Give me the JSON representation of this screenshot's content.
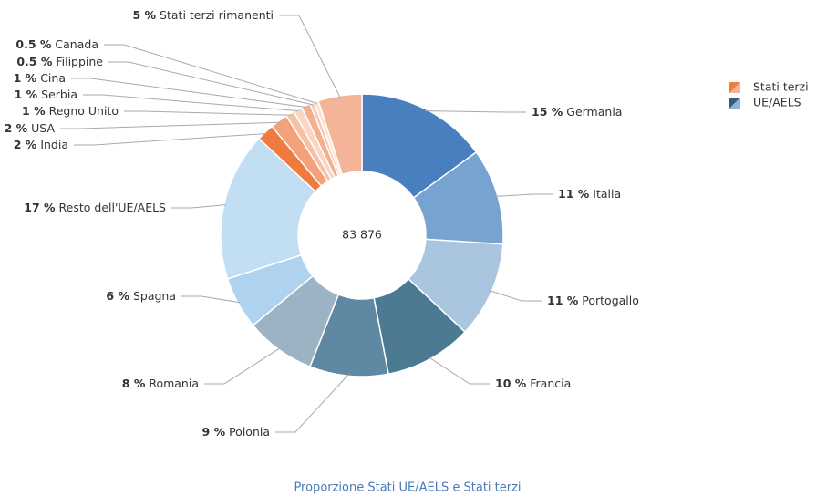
{
  "chart_data": {
    "type": "donut",
    "caption": "Proporzione Stati UE/AELS e Stati terzi",
    "center_label": "83 876",
    "categories": [
      "Germania",
      "Italia",
      "Portogallo",
      "Francia",
      "Polonia",
      "Romania",
      "Spagna",
      "Resto dell'UE/AELS",
      "India",
      "USA",
      "Regno Unito",
      "Serbia",
      "Cina",
      "Filippine",
      "Canada",
      "Stati terzi rimanenti"
    ],
    "values": [
      15,
      11,
      11,
      10,
      9,
      8,
      6,
      17,
      2,
      2,
      1,
      1,
      1,
      0.5,
      0.5,
      5
    ],
    "value_labels": [
      "15 %",
      "11 %",
      "11 %",
      "10 %",
      "9 %",
      "8 %",
      "6 %",
      "17 %",
      "2 %",
      "2 %",
      "1 %",
      "1 %",
      "1 %",
      "0.5 %",
      "0.5 %",
      "5 %"
    ],
    "colors": [
      "#4a7fbf",
      "#77a3d1",
      "#a9c5e0",
      "#4b7a92",
      "#5f89a3",
      "#9cb3c3",
      "#afd3ef",
      "#c2def3",
      "#ef7b3e",
      "#f2a17a",
      "#f6c2a6",
      "#f9d6c4",
      "#f4b08e",
      "#f7c9b1",
      "#fbe0d2",
      "#f3b497"
    ],
    "legend": [
      {
        "name": "Stati terzi",
        "colors": [
          "#ef7b3e",
          "#f3b497"
        ]
      },
      {
        "name": "UE/AELS",
        "colors": [
          "#2f5f7a",
          "#8fb3d6"
        ]
      }
    ],
    "legend_position": "upper right"
  }
}
